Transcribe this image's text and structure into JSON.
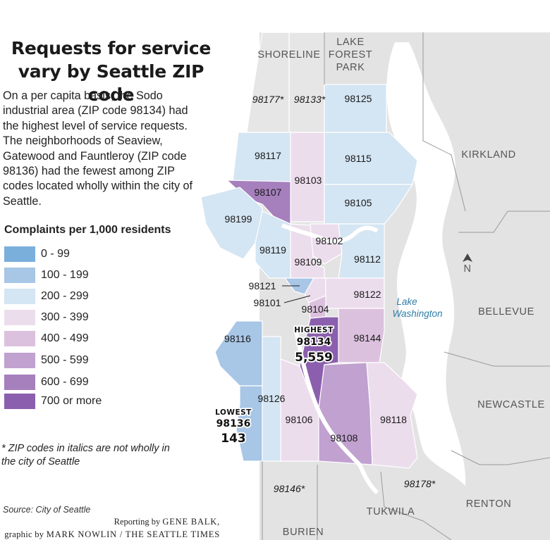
{
  "title_line1": "Requests for service",
  "title_line2": "vary by Seattle ZIP code",
  "description": "On a per capita basis, the Sodo industrial area (ZIP code 98134) had the highest level of service requests. The neighborhoods of Seaview, Gatewood and Fauntleroy (ZIP code 98136) had the fewest among ZIP codes located wholly within the city of Seattle.",
  "legend": {
    "title": "Complaints per 1,000 residents",
    "items": [
      {
        "label": "0 - 99",
        "color": "#7aafdc"
      },
      {
        "label": "100 - 199",
        "color": "#a8c6e6"
      },
      {
        "label": "200 - 299",
        "color": "#d4e5f3"
      },
      {
        "label": "300 - 399",
        "color": "#ecdded"
      },
      {
        "label": "400 - 499",
        "color": "#dcc1de"
      },
      {
        "label": "500 - 599",
        "color": "#c0a1d0"
      },
      {
        "label": "600 - 699",
        "color": "#a67fbd"
      },
      {
        "label": "700 or more",
        "color": "#8b5fad"
      }
    ]
  },
  "footnote": "* ZIP codes in italics are not wholly in the city of Seattle",
  "source": "Source: City of Seattle",
  "credit_line1_prefix": "Reporting by ",
  "credit_line1_name": "GENE BALK,",
  "credit_line2_prefix": "graphic by ",
  "credit_line2_name": "MARK NOWLIN / THE SEATTLE TIMES",
  "places": {
    "shoreline": "SHORELINE",
    "lfp1": "LAKE",
    "lfp2": "FOREST",
    "lfp3": "PARK",
    "kirkland": "KIRKLAND",
    "bellevue": "BELLEVUE",
    "newcastle": "NEWCASTLE",
    "renton": "RENTON",
    "tukwila": "TUKWILA",
    "burien": "BURIEN",
    "lake1": "Lake",
    "lake2": "Washington",
    "north": "N"
  },
  "zips": {
    "z98177": "98177*",
    "z98133": "98133*",
    "z98125": "98125",
    "z98117": "98117",
    "z98115": "98115",
    "z98103": "98103",
    "z98107": "98107",
    "z98105": "98105",
    "z98199": "98199",
    "z98102": "98102",
    "z98119": "98119",
    "z98112": "98112",
    "z98109": "98109",
    "z98121": "98121",
    "z98122": "98122",
    "z98101": "98101",
    "z98104": "98104",
    "z98116": "98116",
    "z98144": "98144",
    "z98126": "98126",
    "z98118": "98118",
    "z98106": "98106",
    "z98108": "98108",
    "z98146": "98146*",
    "z98178": "98178*"
  },
  "highest": {
    "label": "HIGHEST",
    "zip": "98134",
    "value": "5,559"
  },
  "lowest": {
    "label": "LOWEST",
    "zip": "98136",
    "value": "143"
  }
}
